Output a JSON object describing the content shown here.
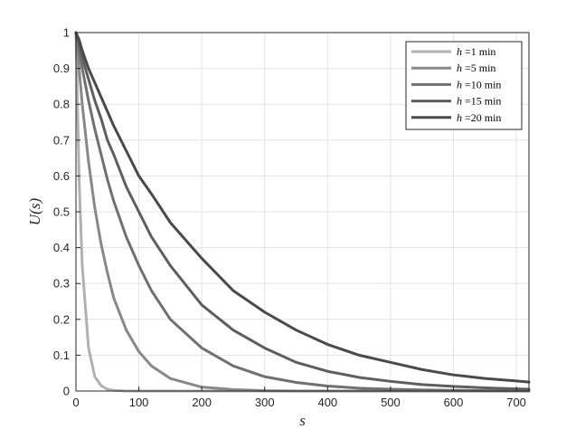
{
  "chart_data": {
    "type": "line",
    "xlabel": "s",
    "ylabel": "U(s)",
    "xlim": [
      0,
      720
    ],
    "ylim": [
      0,
      1
    ],
    "x_ticks": [
      0,
      100,
      200,
      300,
      400,
      500,
      600,
      700
    ],
    "y_ticks": [
      0,
      0.1,
      0.2,
      0.3,
      0.4,
      0.5,
      0.6,
      0.7,
      0.8,
      0.9,
      1
    ],
    "grid": true,
    "legend_position": "top-right",
    "x": [
      0,
      5,
      10,
      20,
      30,
      40,
      50,
      60,
      80,
      100,
      120,
      150,
      200,
      250,
      300,
      350,
      400,
      450,
      500,
      550,
      600,
      650,
      700,
      720
    ],
    "series": [
      {
        "name": "h =1 min",
        "label_h": "h",
        "label_rest": " =1 min",
        "color": "#b0b0b0",
        "values": [
          1,
          0.59,
          0.35,
          0.12,
          0.04,
          0.015,
          0.005,
          0.002,
          0,
          0,
          0,
          0,
          0,
          0,
          0,
          0,
          0,
          0,
          0,
          0,
          0,
          0,
          0,
          0
        ]
      },
      {
        "name": "h =5 min",
        "label_h": "h",
        "label_rest": " =5 min",
        "color": "#888888",
        "values": [
          1,
          0.9,
          0.8,
          0.64,
          0.51,
          0.41,
          0.33,
          0.26,
          0.17,
          0.11,
          0.07,
          0.035,
          0.011,
          0.004,
          0.001,
          0,
          0,
          0,
          0,
          0,
          0,
          0,
          0,
          0
        ]
      },
      {
        "name": "h =10 min",
        "label_h": "h",
        "label_rest": " =10 min",
        "color": "#707070",
        "values": [
          1,
          0.95,
          0.9,
          0.81,
          0.73,
          0.66,
          0.59,
          0.53,
          0.43,
          0.35,
          0.28,
          0.2,
          0.12,
          0.07,
          0.04,
          0.024,
          0.014,
          0.008,
          0.005,
          0.003,
          0.002,
          0.001,
          0.001,
          0
        ]
      },
      {
        "name": "h =15 min",
        "label_h": "h",
        "label_rest": " =15 min",
        "color": "#5e5e5e",
        "values": [
          1,
          0.97,
          0.93,
          0.87,
          0.81,
          0.76,
          0.7,
          0.66,
          0.57,
          0.5,
          0.43,
          0.35,
          0.24,
          0.17,
          0.12,
          0.08,
          0.055,
          0.038,
          0.027,
          0.018,
          0.013,
          0.009,
          0.006,
          0.005
        ]
      },
      {
        "name": "h =20 min",
        "label_h": "h",
        "label_rest": " =20 min",
        "color": "#4a4a4a",
        "values": [
          1,
          0.98,
          0.95,
          0.9,
          0.86,
          0.82,
          0.78,
          0.74,
          0.67,
          0.6,
          0.55,
          0.47,
          0.37,
          0.28,
          0.22,
          0.17,
          0.13,
          0.1,
          0.08,
          0.06,
          0.045,
          0.035,
          0.028,
          0.025
        ]
      }
    ]
  }
}
